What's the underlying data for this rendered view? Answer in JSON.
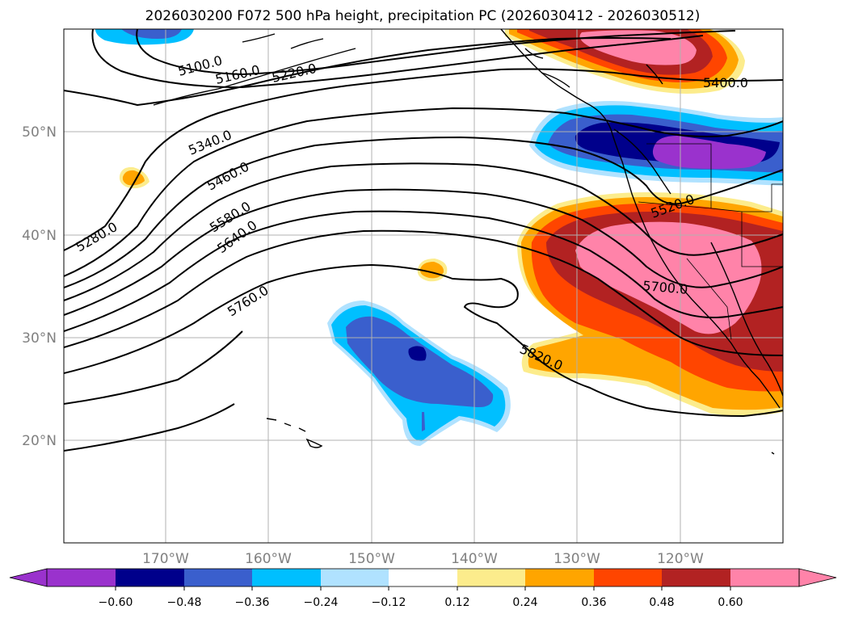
{
  "title": "2026030200 F072 500 hPa height, precipitation PC (2026030412 - 2026030512)",
  "lat_labels": [
    "50°N",
    "40°N",
    "30°N",
    "20°N"
  ],
  "lon_labels": [
    "170°W",
    "160°W",
    "150°W",
    "140°W",
    "130°W",
    "120°W"
  ],
  "colorbar": {
    "ticks": [
      "−0.60",
      "−0.48",
      "−0.36",
      "−0.24",
      "−0.12",
      "0.12",
      "0.24",
      "0.36",
      "0.48",
      "0.60"
    ],
    "colors": [
      "#9a32cd",
      "#00008b",
      "#3a5fcd",
      "#00bfff",
      "#b0e2ff",
      "#ffffff",
      "#fcec8c",
      "#ffa500",
      "#ff4500",
      "#b22222",
      "#ff83a9"
    ]
  },
  "contours": {
    "c5100": "5100.0",
    "c5160": "5160.0",
    "c5220": "5220.0",
    "c5280": "5280.0",
    "c5340": "5340.0",
    "c5400": "5400.0",
    "c5460": "5460.0",
    "c5520": "5520.0",
    "c5580": "5580.0",
    "c5640": "5640.0",
    "c5700": "5700.0",
    "c5760": "5760.0",
    "c5820": "5820.0"
  },
  "palette": {
    "purple": "#9a32cd",
    "navy": "#00008b",
    "blue": "#3a5fcd",
    "sky": "#00bfff",
    "pale": "#b0e2ff",
    "yellow": "#fcec8c",
    "orange": "#ffa500",
    "red": "#ff4500",
    "firebrick": "#b22222",
    "pink": "#ff83a9"
  }
}
